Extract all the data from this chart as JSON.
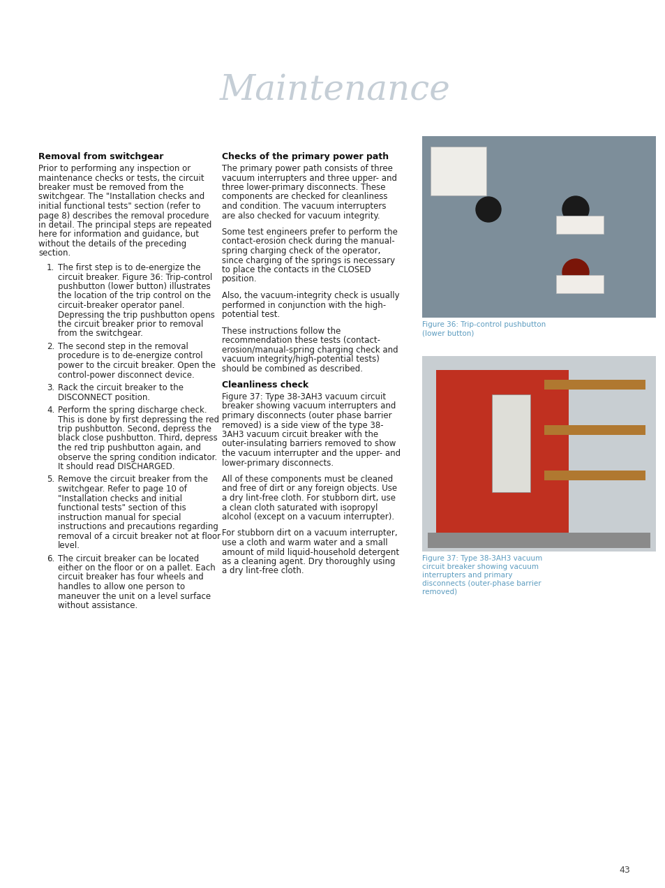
{
  "page_bg": "#ffffff",
  "title": "Maintenance",
  "title_color": "#c5ced6",
  "title_fontsize": 36,
  "page_number": "43",
  "section1_heading": "Removal from switchgear",
  "section1_body": [
    "Prior to performing any inspection or",
    "maintenance checks or tests, the circuit",
    "breaker must be removed from the",
    "switchgear. The \"Installation checks and",
    "initial functional tests\" section (refer to",
    "page 8) describes the removal procedure",
    "in detail. The principal steps are repeated",
    "here for information and guidance, but",
    "without the details of the preceding",
    "section."
  ],
  "section1_items": [
    [
      "The first step is to de-energize the",
      "circuit breaker. Figure 36: Trip-control",
      "pushbutton (lower button) illustrates",
      "the location of the trip control on the",
      "circuit-breaker operator panel.",
      "Depressing the trip pushbutton opens",
      "the circuit breaker prior to removal",
      "from the switchgear."
    ],
    [
      "The second step in the removal",
      "procedure is to de-energize control",
      "power to the circuit breaker. Open the",
      "control-power disconnect device."
    ],
    [
      "Rack the circuit breaker to the",
      "DISCONNECT position."
    ],
    [
      "Perform the spring discharge check.",
      "This is done by first depressing the red",
      "trip pushbutton. Second, depress the",
      "black close pushbutton. Third, depress",
      "the red trip pushbutton again, and",
      "observe the spring condition indicator.",
      "It should read DISCHARGED."
    ],
    [
      "Remove the circuit breaker from the",
      "switchgear. Refer to page 10 of",
      "\"Installation checks and initial",
      "functional tests\" section of this",
      "instruction manual for special",
      "instructions and precautions regarding",
      "removal of a circuit breaker not at floor",
      "level."
    ],
    [
      "The circuit breaker can be located",
      "either on the floor or on a pallet. Each",
      "circuit breaker has four wheels and",
      "handles to allow one person to",
      "maneuver the unit on a level surface",
      "without assistance."
    ]
  ],
  "section2_heading": "Checks of the primary power path",
  "section2_paras": [
    [
      "The primary power path consists of three",
      "vacuum interrupters and three upper- and",
      "three lower-primary disconnects. These",
      "components are checked for cleanliness",
      "and condition. The vacuum interrupters",
      "are also checked for vacuum integrity."
    ],
    [
      "Some test engineers prefer to perform the",
      "contact-erosion check during the manual-",
      "spring charging check of the operator,",
      "since charging of the springs is necessary",
      "to place the contacts in the CLOSED",
      "position."
    ],
    [
      "Also, the vacuum-integrity check is usually",
      "performed in conjunction with the high-",
      "potential test."
    ],
    [
      "These instructions follow the",
      "recommendation these tests (contact-",
      "erosion/manual-spring charging check and",
      "vacuum integrity/high-potential tests)",
      "should be combined as described."
    ]
  ],
  "section3_heading": "Cleanliness check",
  "section3_paras": [
    [
      "Figure 37: Type 38-3AH3 vacuum circuit",
      "breaker showing vacuum interrupters and",
      "primary disconnects (outer phase barrier",
      "removed) is a side view of the type 38-",
      "3AH3 vacuum circuit breaker with the",
      "outer-insulating barriers removed to show",
      "the vacuum interrupter and the upper- and",
      "lower-primary disconnects."
    ],
    [
      "All of these components must be cleaned",
      "and free of dirt or any foreign objects. Use",
      "a dry lint-free cloth. For stubborn dirt, use",
      "a clean cloth saturated with isopropyl",
      "alcohol (except on a vacuum interrupter)."
    ],
    [
      "For stubborn dirt on a vacuum interrupter,",
      "use a cloth and warm water and a small",
      "amount of mild liquid-household detergent",
      "as a cleaning agent. Dry thoroughly using",
      "a dry lint-free cloth."
    ]
  ],
  "fig36_caption": [
    "Figure 36: Trip-control pushbutton",
    "(lower button)"
  ],
  "fig37_caption": [
    "Figure 37: Type 38-3AH3 vacuum",
    "circuit breaker showing vacuum",
    "interrupters and primary",
    "disconnects (outer-phase barrier",
    "removed)"
  ],
  "caption_color": "#5b9bbf",
  "img1_bg": "#7d8e9a",
  "img2_bg": "#c8ced2",
  "img_red": "#c03020",
  "img_copper": "#b07830"
}
